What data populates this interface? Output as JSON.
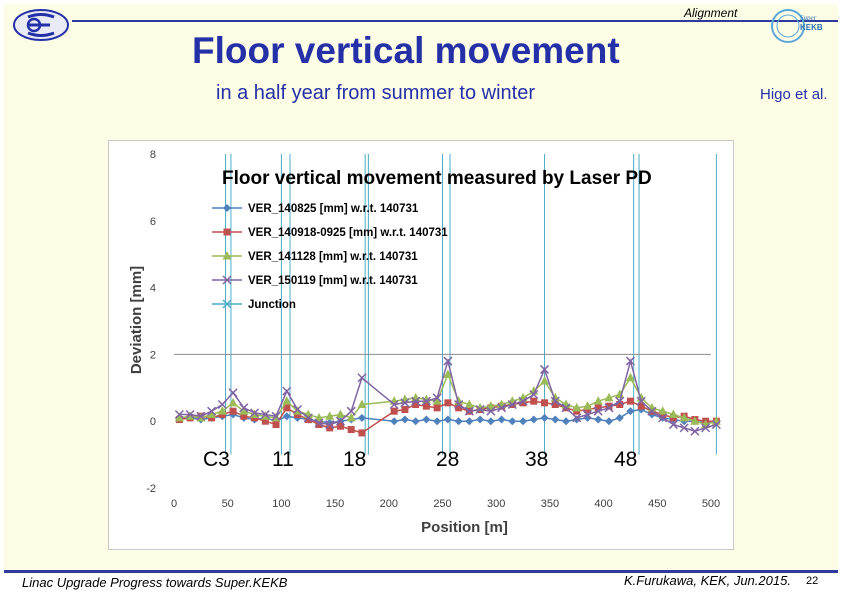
{
  "header": {
    "section": "Alignment",
    "title": "Floor vertical movement",
    "subtitle": "in a half year from summer to winter",
    "author": "Higo et al."
  },
  "footer": {
    "left": "Linac Upgrade Progress towards Super.KEKB",
    "right": "K.Furukawa, KEK, Jun.2015.",
    "page": "22"
  },
  "logos": {
    "right_top": "Super",
    "right_mid": "KEKB"
  },
  "sector_labels": [
    "C3",
    "11",
    "18",
    "28",
    "38",
    "48"
  ],
  "colors": {
    "accent": "#2430a8"
  },
  "chart_data": {
    "type": "line",
    "title": "Floor vertical movement measured by Laser PD",
    "xlabel": "Position [m]",
    "ylabel": "Deviation [mm]",
    "xlim": [
      0,
      500
    ],
    "ylim": [
      -2,
      8
    ],
    "xticks": [
      0,
      50,
      100,
      150,
      200,
      250,
      300,
      350,
      400,
      450,
      500
    ],
    "yticks": [
      -2,
      0,
      2,
      4,
      6,
      8
    ],
    "hline": 2,
    "junctions": [
      48,
      53,
      100,
      108,
      178,
      181,
      250,
      257,
      345,
      428,
      433,
      505
    ],
    "series": [
      {
        "name": "VER_140825 [mm] w.r.t. 140731",
        "color": "#4f81bd",
        "marker": "diamond",
        "x": [
          5,
          15,
          25,
          35,
          45,
          55,
          65,
          75,
          85,
          95,
          105,
          115,
          125,
          135,
          145,
          155,
          165,
          175,
          205,
          215,
          225,
          235,
          245,
          255,
          265,
          275,
          285,
          295,
          305,
          315,
          325,
          335,
          345,
          355,
          365,
          375,
          385,
          395,
          405,
          415,
          425,
          435,
          445,
          455,
          465,
          475,
          485,
          495,
          505
        ],
        "y": [
          0.1,
          0.1,
          0.05,
          0.1,
          0.15,
          0.2,
          0.1,
          0.05,
          0.1,
          0.0,
          0.15,
          0.1,
          0.05,
          0.0,
          -0.05,
          0.0,
          0.05,
          0.1,
          0.0,
          0.05,
          0.0,
          0.05,
          0.0,
          0.05,
          0.0,
          0.0,
          0.05,
          0.0,
          0.05,
          0.0,
          0.0,
          0.05,
          0.1,
          0.05,
          0.0,
          0.05,
          0.1,
          0.05,
          0.0,
          0.1,
          0.3,
          0.35,
          0.2,
          0.1,
          0.05,
          0.0,
          0.0,
          -0.05,
          0.0
        ]
      },
      {
        "name": "VER_140918-0925 [mm] w.r.t. 140731",
        "color": "#c0504d",
        "marker": "square",
        "x": [
          5,
          15,
          25,
          35,
          45,
          55,
          65,
          75,
          85,
          95,
          105,
          115,
          125,
          135,
          145,
          155,
          165,
          175,
          205,
          215,
          225,
          235,
          245,
          255,
          265,
          275,
          285,
          295,
          305,
          315,
          325,
          335,
          345,
          355,
          365,
          375,
          385,
          395,
          405,
          415,
          425,
          435,
          445,
          455,
          465,
          475,
          485,
          495,
          505
        ],
        "y": [
          0.05,
          0.1,
          0.15,
          0.1,
          0.2,
          0.3,
          0.15,
          0.1,
          0.0,
          -0.1,
          0.4,
          0.2,
          0.05,
          -0.1,
          -0.2,
          -0.15,
          -0.25,
          -0.35,
          0.3,
          0.35,
          0.5,
          0.45,
          0.4,
          0.55,
          0.4,
          0.3,
          0.35,
          0.4,
          0.45,
          0.5,
          0.55,
          0.6,
          0.55,
          0.5,
          0.4,
          0.3,
          0.35,
          0.4,
          0.45,
          0.5,
          0.6,
          0.45,
          0.3,
          0.2,
          0.1,
          0.15,
          0.05,
          0.0,
          0.0
        ]
      },
      {
        "name": "VER_141128 [mm] w.r.t. 140731",
        "color": "#9bbb59",
        "marker": "triangle",
        "x": [
          5,
          15,
          25,
          35,
          45,
          55,
          65,
          75,
          85,
          95,
          105,
          115,
          125,
          135,
          145,
          155,
          165,
          175,
          205,
          215,
          225,
          235,
          245,
          255,
          265,
          275,
          285,
          295,
          305,
          315,
          325,
          335,
          345,
          355,
          365,
          375,
          385,
          395,
          405,
          415,
          425,
          435,
          445,
          455,
          465,
          475,
          485,
          495,
          505
        ],
        "y": [
          0.1,
          0.15,
          0.1,
          0.2,
          0.3,
          0.55,
          0.3,
          0.2,
          0.15,
          0.1,
          0.6,
          0.3,
          0.2,
          0.1,
          0.15,
          0.2,
          0.1,
          0.5,
          0.6,
          0.65,
          0.7,
          0.65,
          0.6,
          1.4,
          0.6,
          0.5,
          0.4,
          0.45,
          0.5,
          0.6,
          0.7,
          0.9,
          1.2,
          0.7,
          0.5,
          0.4,
          0.45,
          0.6,
          0.7,
          0.8,
          1.3,
          0.7,
          0.4,
          0.3,
          0.2,
          0.1,
          0.0,
          -0.1,
          0.0
        ]
      },
      {
        "name": "VER_150119 [mm] w.r.t. 140731",
        "color": "#8064a2",
        "marker": "x",
        "x": [
          5,
          15,
          25,
          35,
          45,
          55,
          65,
          75,
          85,
          95,
          105,
          115,
          125,
          135,
          145,
          155,
          165,
          175,
          205,
          215,
          225,
          235,
          245,
          255,
          265,
          275,
          285,
          295,
          305,
          315,
          325,
          335,
          345,
          355,
          365,
          375,
          385,
          395,
          405,
          415,
          425,
          435,
          445,
          455,
          465,
          475,
          485,
          495,
          505
        ],
        "y": [
          0.2,
          0.2,
          0.15,
          0.3,
          0.5,
          0.85,
          0.4,
          0.25,
          0.2,
          0.15,
          0.9,
          0.35,
          0.1,
          -0.05,
          -0.1,
          0.0,
          0.3,
          1.3,
          0.5,
          0.55,
          0.6,
          0.6,
          0.7,
          1.8,
          0.5,
          0.3,
          0.35,
          0.3,
          0.4,
          0.5,
          0.6,
          0.8,
          1.55,
          0.6,
          0.4,
          0.1,
          0.2,
          0.3,
          0.4,
          0.6,
          1.8,
          0.6,
          0.3,
          0.1,
          -0.1,
          -0.2,
          -0.3,
          -0.2,
          -0.1
        ]
      },
      {
        "name": "Junction",
        "color": "#4bacc6",
        "marker": "x",
        "x": [],
        "y": []
      }
    ]
  }
}
